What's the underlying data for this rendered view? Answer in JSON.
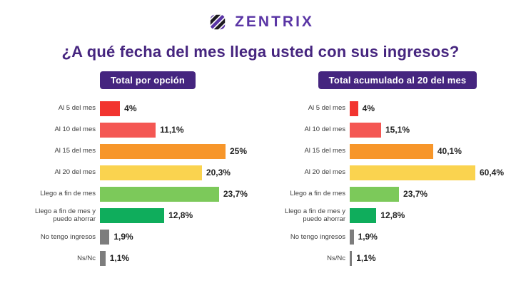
{
  "logo": {
    "text": "ZENTRIX"
  },
  "title": "¿A qué fecha del mes llega usted con sus ingresos?",
  "colors": {
    "brand_purple": "#45257f",
    "logo_purple": "#5a35a5",
    "logo_black": "#1c1a1f",
    "bars": [
      "#f2342f",
      "#f45753",
      "#f7962a",
      "#fad34f",
      "#7cc95a",
      "#0fad5c",
      "#7d7d7d",
      "#7d7d7d"
    ]
  },
  "chart_data": [
    {
      "type": "bar",
      "orientation": "horizontal",
      "title": "Total por opción",
      "categories": [
        "Al 5 del mes",
        "Al 10 del mes",
        "Al 15 del mes",
        "Al 20 del mes",
        "Llego a fin de mes",
        "Llego a fin de mes y puedo ahorrar",
        "No tengo ingresos",
        "Ns/Nc"
      ],
      "values": [
        4,
        11.1,
        25,
        20.3,
        23.7,
        12.8,
        1.9,
        1.1
      ],
      "value_labels": [
        "4%",
        "11,1%",
        "25%",
        "20,3%",
        "23,7%",
        "12,8%",
        "1,9%",
        "1,1%"
      ],
      "xlim": [
        0,
        25
      ],
      "grid": false,
      "legend": false
    },
    {
      "type": "bar",
      "orientation": "horizontal",
      "title": "Total acumulado al 20 del mes",
      "categories": [
        "Al 5 del mes",
        "Al 10 del mes",
        "Al 15 del mes",
        "Al 20 del mes",
        "Llego a fin de mes",
        "Llego a fin de mes y puedo ahorrar",
        "No tengo ingresos",
        "Ns/Nc"
      ],
      "values": [
        4,
        15.1,
        40.1,
        60.4,
        23.7,
        12.8,
        1.9,
        1.1
      ],
      "value_labels": [
        "4%",
        "15,1%",
        "40,1%",
        "60,4%",
        "23,7%",
        "12,8%",
        "1,9%",
        "1,1%"
      ],
      "xlim": [
        0,
        60.4
      ],
      "grid": false,
      "legend": false
    }
  ]
}
